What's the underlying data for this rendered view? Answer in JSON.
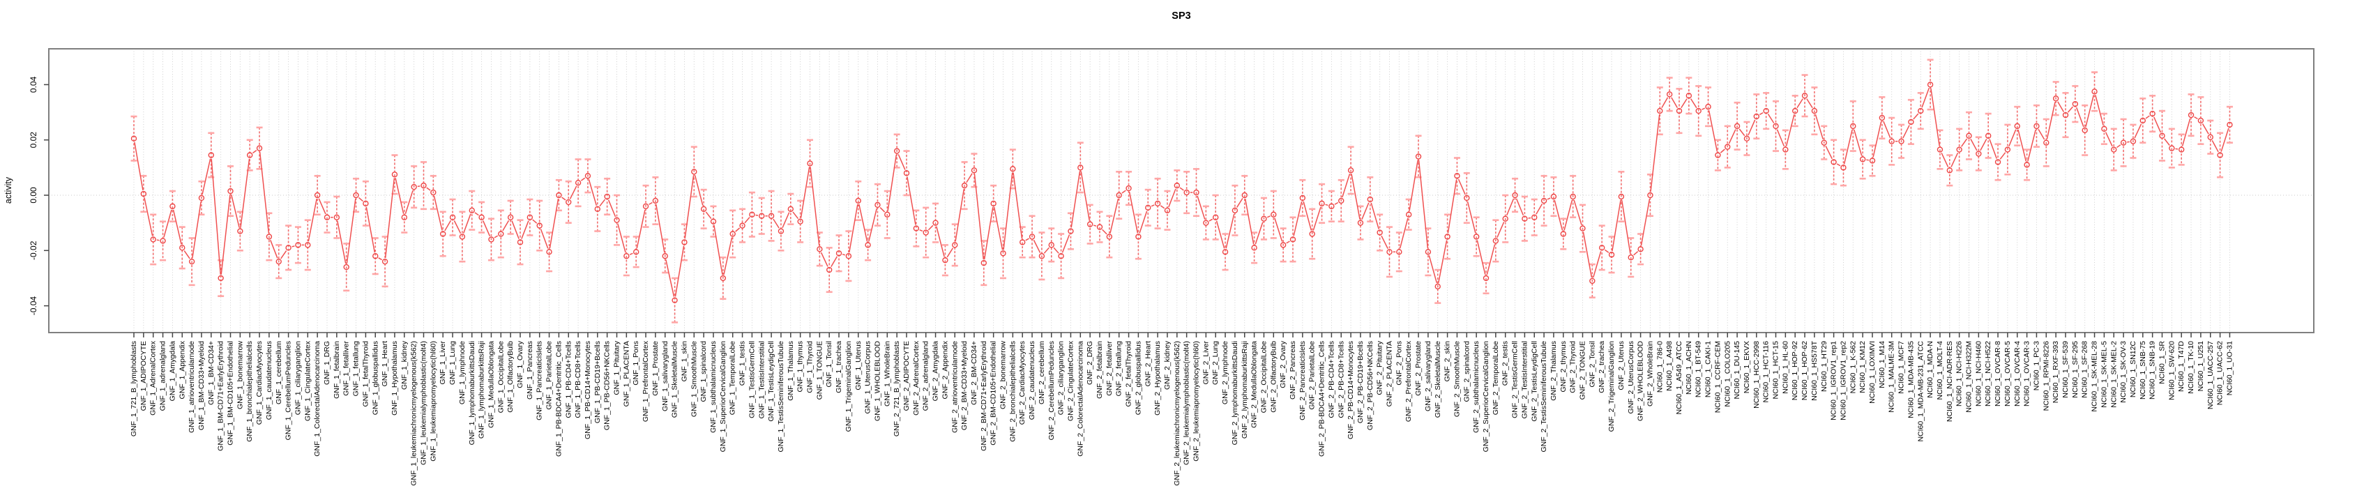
{
  "header": {
    "title": "SP3"
  },
  "chart_data": {
    "type": "line",
    "title": "SP3",
    "xlabel": "",
    "ylabel": "activity",
    "ylim": [
      -0.05,
      0.0535
    ],
    "yticks": [
      -0.04,
      -0.02,
      0,
      0.02,
      0.04
    ],
    "ytick_labels": [
      "-0.04",
      "-0.02",
      "0.00",
      "0.02",
      "0.04"
    ],
    "legend_position": "none",
    "grid": {
      "vertical_dotted_per_category": true,
      "horizontal_dotted_zero_line": true
    },
    "point_style": "open-circle-with-error-bars",
    "colors": {
      "line": "#f05050",
      "point": "#ee4444",
      "error_cap": "#ffa6a6",
      "error_stem": "#f26d6d",
      "gridline": "#c9c9c9",
      "box_border": "#7f7f7f",
      "tick": "#444444",
      "text": "#000000"
    },
    "error_cycle": [
      0.008,
      0.0065,
      0.009,
      0.007,
      0.0055,
      0.0075,
      0.0085,
      0.006
    ],
    "categories": [
      "GNF_1_721_B_lymphoblasts",
      "GNF_1_ADIPOCYTE",
      "GNF_1_AdrenalCortex",
      "GNF_1_adrenalgland",
      "GNF_1_Amygdala",
      "GNF_1_Appendix",
      "GNF_1_atrioventricularnode",
      "GNF_1_BM-CD33+Myeloid",
      "GNF_1_BM-CD34+",
      "GNF_1_BM-CD71+EarlyErythroid",
      "GNF_1_BM-CD105+Endothelial",
      "GNF_1_bonemarrow",
      "GNF_1_bronchialepithelialcells",
      "GNF_1_CardiacMyocytes",
      "GNF_1_caudatenucleus",
      "GNF_1_cerebellum",
      "GNF_1_CerebellumPeduncles",
      "GNF_1_ciliaryganglion",
      "GNF_1_CingulateCortex",
      "GNF_1_ColorectalAdenocarcinoma",
      "GNF_1_DRG",
      "GNF_1_fetalbrain",
      "GNF_1_fetalliver",
      "GNF_1_fetallung",
      "GNF_1_fetalThyroid",
      "GNF_1_globuspallidus",
      "GNF_1_Heart",
      "GNF_1_Hypothalamus",
      "GNF_1_kidney",
      "GNF_1_leukemiachronicmyelogenous(k562)",
      "GNF_1_leukemialymphoblastic(molt4)",
      "GNF_1_leukemiapromyelocytic(hl60)",
      "GNF_1_Liver",
      "GNF_1_Lung",
      "GNF_1_lymphnode",
      "GNF_1_lymphomaburkittsDaudi",
      "GNF_1_lymphomaburkittsRaji",
      "GNF_1_MedullaOblongata",
      "GNF_1_OccipitalLobe",
      "GNF_1_OlfactoryBulb",
      "GNF_1_Ovary",
      "GNF_1_Pancreas",
      "GNF_1_PancreaticIslets",
      "GNF_1_ParietalLobe",
      "GNF_1_PB-BDCA4+Dentritic_Cells",
      "GNF_1_PB-CD4+Tcells",
      "GNF_1_PB-CD8+Tcells",
      "GNF_1_PB-CD14+Monocytes",
      "GNF_1_PB-CD19+Bcells",
      "GNF_1_PB-CD56+NKCells",
      "GNF_1_Pituitary",
      "GNF_1_PLACENTA",
      "GNF_1_Pons",
      "GNF_1_PrefrontalCortex",
      "GNF_1_Prostate",
      "GNF_1_salivarygland",
      "GNF_1_SkeletalMuscle",
      "GNF_1_skin",
      "GNF_1_SmoothMuscle",
      "GNF_1_spinalcord",
      "GNF_1_subthalamicnucleus",
      "GNF_1_SuperiorCervicalGanglion",
      "GNF_1_TemporalLobe",
      "GNF_1_testis",
      "GNF_1_TestisGermCell",
      "GNF_1_TestisInterstitial",
      "GNF_1_TestisLeydigCell",
      "GNF_1_TestisSeminiferousTubule",
      "GNF_1_Thalamus",
      "GNF_1_thymus",
      "GNF_1_Thyroid",
      "GNF_1_TONGUE",
      "GNF_1_Tonsil",
      "GNF_1_trachea",
      "GNF_1_TrigeminalGanglion",
      "GNF_1_Uterus",
      "GNF_1_UterusCorpus",
      "GNF_1_WHOLEBLOOD",
      "GNF_1_WholeBrain",
      "GNF_2_721_B_lymphoblasts",
      "GNF_2_ADIPOCYTE",
      "GNF_2_AdrenalCortex",
      "GNF_2_adrenalgland",
      "GNF_2_Amygdala",
      "GNF_2_Appendix",
      "GNF_2_atrioventricularnode",
      "GNF_2_BM-CD33+Myeloid",
      "GNF_2_BM-CD34+",
      "GNF_2_BM-CD71+EarlyErythroid",
      "GNF_2_BM-CD105+Endothelial",
      "GNF_2_bonemarrow",
      "GNF_2_bronchialepithelialcells",
      "GNF_2_CardiacMyocytes",
      "GNF_2_caudatenucleus",
      "GNF_2_cerebellum",
      "GNF_2_CerebellumPeduncles",
      "GNF_2_ciliaryganglion",
      "GNF_2_CingulateCortex",
      "GNF_2_ColorectalAdenocarcinoma",
      "GNF_2_DRG",
      "GNF_2_fetalbrain",
      "GNF_2_fetalliver",
      "GNF_2_fetallung",
      "GNF_2_fetalThyroid",
      "GNF_2_globuspallidus",
      "GNF_2_Heart",
      "GNF_2_Hypothalamus",
      "GNF_2_kidney",
      "GNF_2_leukemiachronicmyelogenous(k562)",
      "GNF_2_leukemialymphoblastic(molt4)",
      "GNF_2_leukemiapromyelocytic(hl60)",
      "GNF_2_Liver",
      "GNF_2_Lung",
      "GNF_2_lymphnode",
      "GNF_2_lymphomaburkittsDaudi",
      "GNF_2_lymphomaburkittsRaji",
      "GNF_2_MedullaOblongata",
      "GNF_2_OccipitalLobe",
      "GNF_2_OlfactoryBulb",
      "GNF_2_Ovary",
      "GNF_2_Pancreas",
      "GNF_2_PancreaticIslets",
      "GNF_2_ParietalLobe",
      "GNF_2_PB-BDCA4+Dentritic_Cells",
      "GNF_2_PB-CD4+Tcells",
      "GNF_2_PB-CD8+Tcells",
      "GNF_2_PB-CD14+Monocytes",
      "GNF_2_PB-CD19+Bcells",
      "GNF_2_PB-CD56+NKCells",
      "GNF_2_Pituitary",
      "GNF_2_PLACENTA",
      "GNF_2_Pons",
      "GNF_2_PrefrontalCortex",
      "GNF_2_Prostate",
      "GNF_2_salivarygland",
      "GNF_2_SkeletalMuscle",
      "GNF_2_skin",
      "GNF_2_SmoothMuscle",
      "GNF_2_spinalcord",
      "GNF_2_subthalamicnucleus",
      "GNF_2_SuperiorCervicalGanglion",
      "GNF_2_TemporalLobe",
      "GNF_2_testis",
      "GNF_2_TestisGermCell",
      "GNF_2_TestisInterstitial",
      "GNF_2_TestisLeydigCell",
      "GNF_2_TestisSeminiferousTubule",
      "GNF_2_Thalamus",
      "GNF_2_thymus",
      "GNF_2_Thyroid",
      "GNF_2_TONGUE",
      "GNF_2_Tonsil",
      "GNF_2_trachea",
      "GNF_2_TrigeminalGanglion",
      "GNF_2_Uterus",
      "GNF_2_UterusCorpus",
      "GNF_2_WHOLEBLOOD",
      "GNF_2_WholeBrain",
      "NCI60_1_786-0",
      "NCI60_1_A498",
      "NCI60_1_A549_ATCC",
      "NCI60_1_ACHN",
      "NCI60_1_BT-549",
      "NCI60_1_CAKI-1",
      "NCI60_1_CCRF-CEM",
      "NCI60_1_COLO205",
      "NCI60_1_DU-145",
      "NCI60_1_EKVX",
      "NCI60_1_HCC-2998",
      "NCI60_1_HCT-116",
      "NCI60_1_HCT-15",
      "NCI60_1_HL-60",
      "NCI60_1_HOP-92",
      "NCI60_1_HOP-62",
      "NCI60_1_HS578T",
      "NCI60_1_HT29",
      "NCI60_1_IGROV1_rep1",
      "NCI60_1_IGROV1_rep2",
      "NCI60_1_K-562",
      "NCI60_1_KM12",
      "NCI60_1_LOXIMVI",
      "NCI60_1_M14",
      "NCI60_1_MALME-3M",
      "NCI60_1_MCF7",
      "NCI60_1_MDA-MB-435",
      "NCI60_1_MDA-MB-231_ATCC",
      "NCI60_1_MDA-N",
      "NCI60_1_MOLT-4",
      "NCI60_1_NCI-ADR-RES",
      "NCI60_1_NCI-H226",
      "NCI60_1_NCI-H322M",
      "NCI60_1_NCI-H460",
      "NCI60_1_NCI-H522",
      "NCI60_1_OVCAR-8",
      "NCI60_1_OVCAR-5",
      "NCI60_1_OVCAR-4",
      "NCI60_1_OVCAR-3",
      "NCI60_1_PC-3",
      "NCI60_1_RPMI-8226",
      "NCI60_1_RXF-393",
      "NCI60_1_SF-539",
      "NCI60_1_SF-295",
      "NCI60_1_SF-268",
      "NCI60_1_SK-MEL-28",
      "NCI60_1_SK-MEL-5",
      "NCI60_1_SK-MEL-2",
      "NCI60_1_SK-OV-3",
      "NCI60_1_SN12C",
      "NCI60_1_SNB-75",
      "NCI60_1_SNB-19",
      "NCI60_1_SR",
      "NCI60_1_SW-620",
      "NCI60_1_T47D",
      "NCI60_1_TK-10",
      "NCI60_1_U251",
      "NCI60_1_UACC-257",
      "NCI60_1_UACC-62",
      "NCI60_1_UO-31"
    ],
    "values": [
      0.0205,
      0.0005,
      -0.016,
      -0.0165,
      -0.004,
      -0.019,
      -0.024,
      -0.001,
      0.0145,
      -0.03,
      0.0015,
      -0.013,
      0.0145,
      0.017,
      -0.015,
      -0.024,
      -0.019,
      -0.018,
      -0.018,
      0.0,
      -0.008,
      -0.008,
      -0.026,
      0.0,
      -0.003,
      -0.022,
      -0.024,
      0.0075,
      -0.008,
      0.003,
      0.0035,
      0.001,
      -0.014,
      -0.008,
      -0.015,
      -0.0055,
      -0.008,
      -0.016,
      -0.014,
      -0.008,
      -0.017,
      -0.008,
      -0.011,
      -0.0205,
      0.0,
      -0.0025,
      0.0045,
      0.007,
      -0.005,
      -0.0005,
      -0.009,
      -0.022,
      -0.0205,
      -0.004,
      -0.002,
      -0.022,
      -0.038,
      -0.017,
      0.0085,
      -0.005,
      -0.0095,
      -0.03,
      -0.014,
      -0.011,
      -0.007,
      -0.0075,
      -0.0075,
      -0.013,
      -0.005,
      -0.0095,
      0.0115,
      -0.0195,
      -0.027,
      -0.021,
      -0.022,
      -0.002,
      -0.018,
      -0.0035,
      -0.007,
      0.016,
      0.008,
      -0.012,
      -0.0135,
      -0.01,
      -0.0235,
      -0.018,
      0.0035,
      0.009,
      -0.0245,
      -0.003,
      -0.021,
      0.0095,
      -0.017,
      -0.015,
      -0.022,
      -0.018,
      -0.022,
      -0.013,
      0.01,
      -0.0105,
      -0.0115,
      -0.015,
      0.0,
      0.0025,
      -0.015,
      -0.0045,
      -0.003,
      -0.0055,
      0.0035,
      0.001,
      0.001,
      -0.01,
      -0.008,
      -0.0205,
      -0.0055,
      0.0,
      -0.019,
      -0.0085,
      -0.007,
      -0.018,
      -0.016,
      -0.001,
      -0.014,
      -0.003,
      -0.004,
      -0.002,
      0.009,
      -0.01,
      -0.0015,
      -0.0135,
      -0.0205,
      -0.0205,
      -0.007,
      0.014,
      -0.0205,
      -0.033,
      -0.015,
      0.007,
      -0.001,
      -0.015,
      -0.03,
      -0.0165,
      -0.0085,
      0.0,
      -0.0085,
      -0.008,
      -0.002,
      -0.0005,
      -0.014,
      -0.0005,
      -0.012,
      -0.031,
      -0.019,
      -0.0215,
      -0.0005,
      -0.0225,
      -0.0195,
      0.0,
      0.0305,
      0.0365,
      0.0305,
      0.036,
      0.0305,
      0.032,
      0.0145,
      0.0175,
      0.025,
      0.0205,
      0.0285,
      0.0305,
      0.025,
      0.0165,
      0.0305,
      0.036,
      0.0305,
      0.019,
      0.012,
      0.01,
      0.025,
      0.013,
      0.0125,
      0.028,
      0.0195,
      0.0195,
      0.0265,
      0.0305,
      0.04,
      0.0165,
      0.009,
      0.0165,
      0.0215,
      0.015,
      0.0215,
      0.012,
      0.0165,
      0.025,
      0.011,
      0.025,
      0.019,
      0.035,
      0.029,
      0.033,
      0.0235,
      0.0375,
      0.024,
      0.0165,
      0.019,
      0.0195,
      0.027,
      0.0295,
      0.0215,
      0.017,
      0.0165,
      0.029,
      0.027,
      0.021,
      0.0145,
      0.0255
    ]
  }
}
